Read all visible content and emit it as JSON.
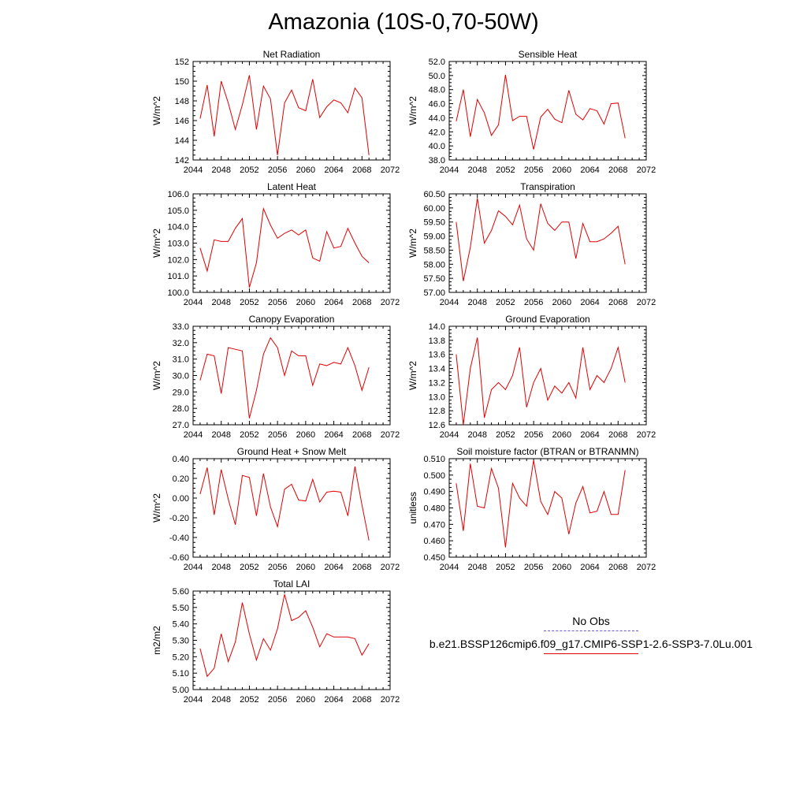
{
  "figure_title": "Amazonia (10S-0,70-50W)",
  "legend": {
    "obs_label": "No Obs",
    "model_label": "b.e21.BSSP126cmip6.f09_g17.CMIP6-SSP1-2.6-SSP3-7.0Lu.001",
    "obs_color": "#6a5acd",
    "model_color": "#e00000"
  },
  "chart_data": [
    {
      "type": "line",
      "title": "Net Radiation",
      "ylabel": "W/m^2",
      "xlim": [
        2044,
        2072
      ],
      "xticks": [
        2044,
        2048,
        2052,
        2056,
        2060,
        2064,
        2068,
        2072
      ],
      "ylim": [
        142,
        152
      ],
      "yticks": [
        142,
        144,
        146,
        148,
        150,
        152
      ],
      "ytick_labels": [
        "142",
        "144",
        "146",
        "148",
        "150",
        "152"
      ],
      "x": [
        2045,
        2046,
        2047,
        2048,
        2049,
        2050,
        2051,
        2052,
        2053,
        2054,
        2055,
        2056,
        2057,
        2058,
        2059,
        2060,
        2061,
        2062,
        2063,
        2064,
        2065,
        2066,
        2067,
        2068,
        2069
      ],
      "series": [
        {
          "values": [
            146.2,
            149.6,
            144.4,
            150.0,
            147.8,
            145.1,
            147.6,
            150.6,
            145.1,
            149.5,
            148.2,
            142.5,
            147.8,
            149.1,
            147.3,
            147.0,
            150.2,
            146.3,
            147.4,
            148.1,
            147.8,
            146.8,
            149.3,
            148.3,
            142.5
          ]
        }
      ]
    },
    {
      "type": "line",
      "title": "Sensible Heat",
      "ylabel": "W/m^2",
      "xlim": [
        2044,
        2072
      ],
      "xticks": [
        2044,
        2048,
        2052,
        2056,
        2060,
        2064,
        2068,
        2072
      ],
      "ylim": [
        38,
        52
      ],
      "yticks": [
        38,
        40,
        42,
        44,
        46,
        48,
        50,
        52
      ],
      "ytick_labels": [
        "38.0",
        "40.0",
        "42.0",
        "44.0",
        "46.0",
        "48.0",
        "50.0",
        "52.0"
      ],
      "x": [
        2045,
        2046,
        2047,
        2048,
        2049,
        2050,
        2051,
        2052,
        2053,
        2054,
        2055,
        2056,
        2057,
        2058,
        2059,
        2060,
        2061,
        2062,
        2063,
        2064,
        2065,
        2066,
        2067,
        2068,
        2069
      ],
      "series": [
        {
          "values": [
            43.5,
            48.0,
            41.3,
            46.6,
            44.7,
            41.5,
            43.0,
            50.1,
            43.6,
            44.2,
            44.2,
            39.5,
            44.1,
            45.2,
            43.8,
            43.3,
            47.9,
            44.5,
            43.7,
            45.3,
            45.0,
            43.1,
            46.0,
            46.1,
            41.1
          ]
        }
      ]
    },
    {
      "type": "line",
      "title": "Latent Heat",
      "ylabel": "W/m^2",
      "xlim": [
        2044,
        2072
      ],
      "xticks": [
        2044,
        2048,
        2052,
        2056,
        2060,
        2064,
        2068,
        2072
      ],
      "ylim": [
        100,
        106
      ],
      "yticks": [
        100,
        101,
        102,
        103,
        104,
        105,
        106
      ],
      "ytick_labels": [
        "100.0",
        "101.0",
        "102.0",
        "103.0",
        "104.0",
        "105.0",
        "106.0"
      ],
      "x": [
        2045,
        2046,
        2047,
        2048,
        2049,
        2050,
        2051,
        2052,
        2053,
        2054,
        2055,
        2056,
        2057,
        2058,
        2059,
        2060,
        2061,
        2062,
        2063,
        2064,
        2065,
        2066,
        2067,
        2068,
        2069
      ],
      "series": [
        {
          "values": [
            102.7,
            101.3,
            103.2,
            103.1,
            103.1,
            103.9,
            104.5,
            100.3,
            101.8,
            105.1,
            104.1,
            103.3,
            103.6,
            103.8,
            103.5,
            103.8,
            102.1,
            101.9,
            103.7,
            102.7,
            102.8,
            103.9,
            103.0,
            102.2,
            101.8
          ]
        }
      ]
    },
    {
      "type": "line",
      "title": "Transpiration",
      "ylabel": "W/m^2",
      "xlim": [
        2044,
        2072
      ],
      "xticks": [
        2044,
        2048,
        2052,
        2056,
        2060,
        2064,
        2068,
        2072
      ],
      "ylim": [
        57,
        60.5
      ],
      "yticks": [
        57,
        57.5,
        58,
        58.5,
        59,
        59.5,
        60,
        60.5
      ],
      "ytick_labels": [
        "57.00",
        "57.50",
        "58.00",
        "58.50",
        "59.00",
        "59.50",
        "60.00",
        "60.50"
      ],
      "x": [
        2045,
        2046,
        2047,
        2048,
        2049,
        2050,
        2051,
        2052,
        2053,
        2054,
        2055,
        2056,
        2057,
        2058,
        2059,
        2060,
        2061,
        2062,
        2063,
        2064,
        2065,
        2066,
        2067,
        2068,
        2069
      ],
      "series": [
        {
          "values": [
            59.5,
            57.4,
            58.6,
            60.35,
            58.75,
            59.2,
            59.9,
            59.7,
            59.4,
            60.1,
            58.9,
            58.5,
            60.15,
            59.45,
            59.2,
            59.5,
            59.5,
            58.2,
            59.45,
            58.8,
            58.8,
            58.9,
            59.1,
            59.35,
            58.0
          ]
        }
      ]
    },
    {
      "type": "line",
      "title": "Canopy Evaporation",
      "ylabel": "W/m^2",
      "xlim": [
        2044,
        2072
      ],
      "xticks": [
        2044,
        2048,
        2052,
        2056,
        2060,
        2064,
        2068,
        2072
      ],
      "ylim": [
        27,
        33
      ],
      "yticks": [
        27,
        28,
        29,
        30,
        31,
        32,
        33
      ],
      "ytick_labels": [
        "27.0",
        "28.0",
        "29.0",
        "30.0",
        "31.0",
        "32.0",
        "33.0"
      ],
      "x": [
        2045,
        2046,
        2047,
        2048,
        2049,
        2050,
        2051,
        2052,
        2053,
        2054,
        2055,
        2056,
        2057,
        2058,
        2059,
        2060,
        2061,
        2062,
        2063,
        2064,
        2065,
        2066,
        2067,
        2068,
        2069
      ],
      "series": [
        {
          "values": [
            29.7,
            31.3,
            31.2,
            28.9,
            31.7,
            31.6,
            31.5,
            27.4,
            29.1,
            31.3,
            32.3,
            31.7,
            30.0,
            31.5,
            31.2,
            31.2,
            29.4,
            30.7,
            30.6,
            30.8,
            30.7,
            31.7,
            30.6,
            29.1,
            30.5
          ]
        }
      ]
    },
    {
      "type": "line",
      "title": "Ground Evaporation",
      "ylabel": "W/m^2",
      "xlim": [
        2044,
        2072
      ],
      "xticks": [
        2044,
        2048,
        2052,
        2056,
        2060,
        2064,
        2068,
        2072
      ],
      "ylim": [
        12.6,
        14.0
      ],
      "yticks": [
        12.6,
        12.8,
        13.0,
        13.2,
        13.4,
        13.6,
        13.8,
        14.0
      ],
      "ytick_labels": [
        "12.6",
        "12.8",
        "13.0",
        "13.2",
        "13.4",
        "13.6",
        "13.8",
        "14.0"
      ],
      "x": [
        2045,
        2046,
        2047,
        2048,
        2049,
        2050,
        2051,
        2052,
        2053,
        2054,
        2055,
        2056,
        2057,
        2058,
        2059,
        2060,
        2061,
        2062,
        2063,
        2064,
        2065,
        2066,
        2067,
        2068,
        2069
      ],
      "series": [
        {
          "values": [
            13.6,
            12.6,
            13.4,
            13.84,
            12.7,
            13.1,
            13.2,
            13.1,
            13.3,
            13.7,
            12.85,
            13.2,
            13.4,
            12.95,
            13.15,
            13.05,
            13.2,
            12.98,
            13.7,
            13.1,
            13.3,
            13.2,
            13.4,
            13.7,
            13.2
          ]
        }
      ]
    },
    {
      "type": "line",
      "title": "Ground Heat + Snow Melt",
      "ylabel": "W/m^2",
      "xlim": [
        2044,
        2072
      ],
      "xticks": [
        2044,
        2048,
        2052,
        2056,
        2060,
        2064,
        2068,
        2072
      ],
      "ylim": [
        -0.6,
        0.4
      ],
      "yticks": [
        -0.6,
        -0.4,
        -0.2,
        0,
        0.2,
        0.4
      ],
      "ytick_labels": [
        "-0.60",
        "-0.40",
        "-0.20",
        "0.00",
        "0.20",
        "0.40"
      ],
      "x": [
        2045,
        2046,
        2047,
        2048,
        2049,
        2050,
        2051,
        2052,
        2053,
        2054,
        2055,
        2056,
        2057,
        2058,
        2059,
        2060,
        2061,
        2062,
        2063,
        2064,
        2065,
        2066,
        2067,
        2068,
        2069
      ],
      "series": [
        {
          "values": [
            0.04,
            0.31,
            -0.17,
            0.29,
            -0.01,
            -0.27,
            0.23,
            0.21,
            -0.18,
            0.25,
            -0.09,
            -0.29,
            0.09,
            0.14,
            -0.02,
            -0.03,
            0.19,
            -0.04,
            0.06,
            0.07,
            0.06,
            -0.18,
            0.32,
            -0.07,
            -0.43
          ]
        }
      ]
    },
    {
      "type": "line",
      "title": "Soil moisture factor (BTRAN or BTRANMN)",
      "ylabel": "unitless",
      "xlim": [
        2044,
        2072
      ],
      "xticks": [
        2044,
        2048,
        2052,
        2056,
        2060,
        2064,
        2068,
        2072
      ],
      "ylim": [
        0.45,
        0.51
      ],
      "yticks": [
        0.45,
        0.46,
        0.47,
        0.48,
        0.49,
        0.5,
        0.51
      ],
      "ytick_labels": [
        "0.450",
        "0.460",
        "0.470",
        "0.480",
        "0.490",
        "0.500",
        "0.510"
      ],
      "x": [
        2045,
        2046,
        2047,
        2048,
        2049,
        2050,
        2051,
        2052,
        2053,
        2054,
        2055,
        2056,
        2057,
        2058,
        2059,
        2060,
        2061,
        2062,
        2063,
        2064,
        2065,
        2066,
        2067,
        2068,
        2069
      ],
      "series": [
        {
          "values": [
            0.495,
            0.466,
            0.507,
            0.481,
            0.48,
            0.504,
            0.492,
            0.456,
            0.495,
            0.486,
            0.481,
            0.509,
            0.484,
            0.476,
            0.49,
            0.486,
            0.464,
            0.483,
            0.493,
            0.477,
            0.478,
            0.49,
            0.476,
            0.476,
            0.503
          ]
        }
      ]
    },
    {
      "type": "line",
      "title": "Total LAI",
      "ylabel": "m2/m2",
      "xlim": [
        2044,
        2072
      ],
      "xticks": [
        2044,
        2048,
        2052,
        2056,
        2060,
        2064,
        2068,
        2072
      ],
      "ylim": [
        5.0,
        5.6
      ],
      "yticks": [
        5.0,
        5.1,
        5.2,
        5.3,
        5.4,
        5.5,
        5.6
      ],
      "ytick_labels": [
        "5.00",
        "5.10",
        "5.20",
        "5.30",
        "5.40",
        "5.50",
        "5.60"
      ],
      "x": [
        2045,
        2046,
        2047,
        2048,
        2049,
        2050,
        2051,
        2052,
        2053,
        2054,
        2055,
        2056,
        2057,
        2058,
        2059,
        2060,
        2061,
        2062,
        2063,
        2064,
        2065,
        2066,
        2067,
        2068,
        2069
      ],
      "series": [
        {
          "values": [
            5.25,
            5.08,
            5.13,
            5.34,
            5.17,
            5.29,
            5.53,
            5.34,
            5.18,
            5.31,
            5.24,
            5.37,
            5.58,
            5.42,
            5.44,
            5.48,
            5.38,
            5.26,
            5.34,
            5.32,
            5.32,
            5.32,
            5.31,
            5.21,
            5.28
          ]
        }
      ]
    }
  ]
}
